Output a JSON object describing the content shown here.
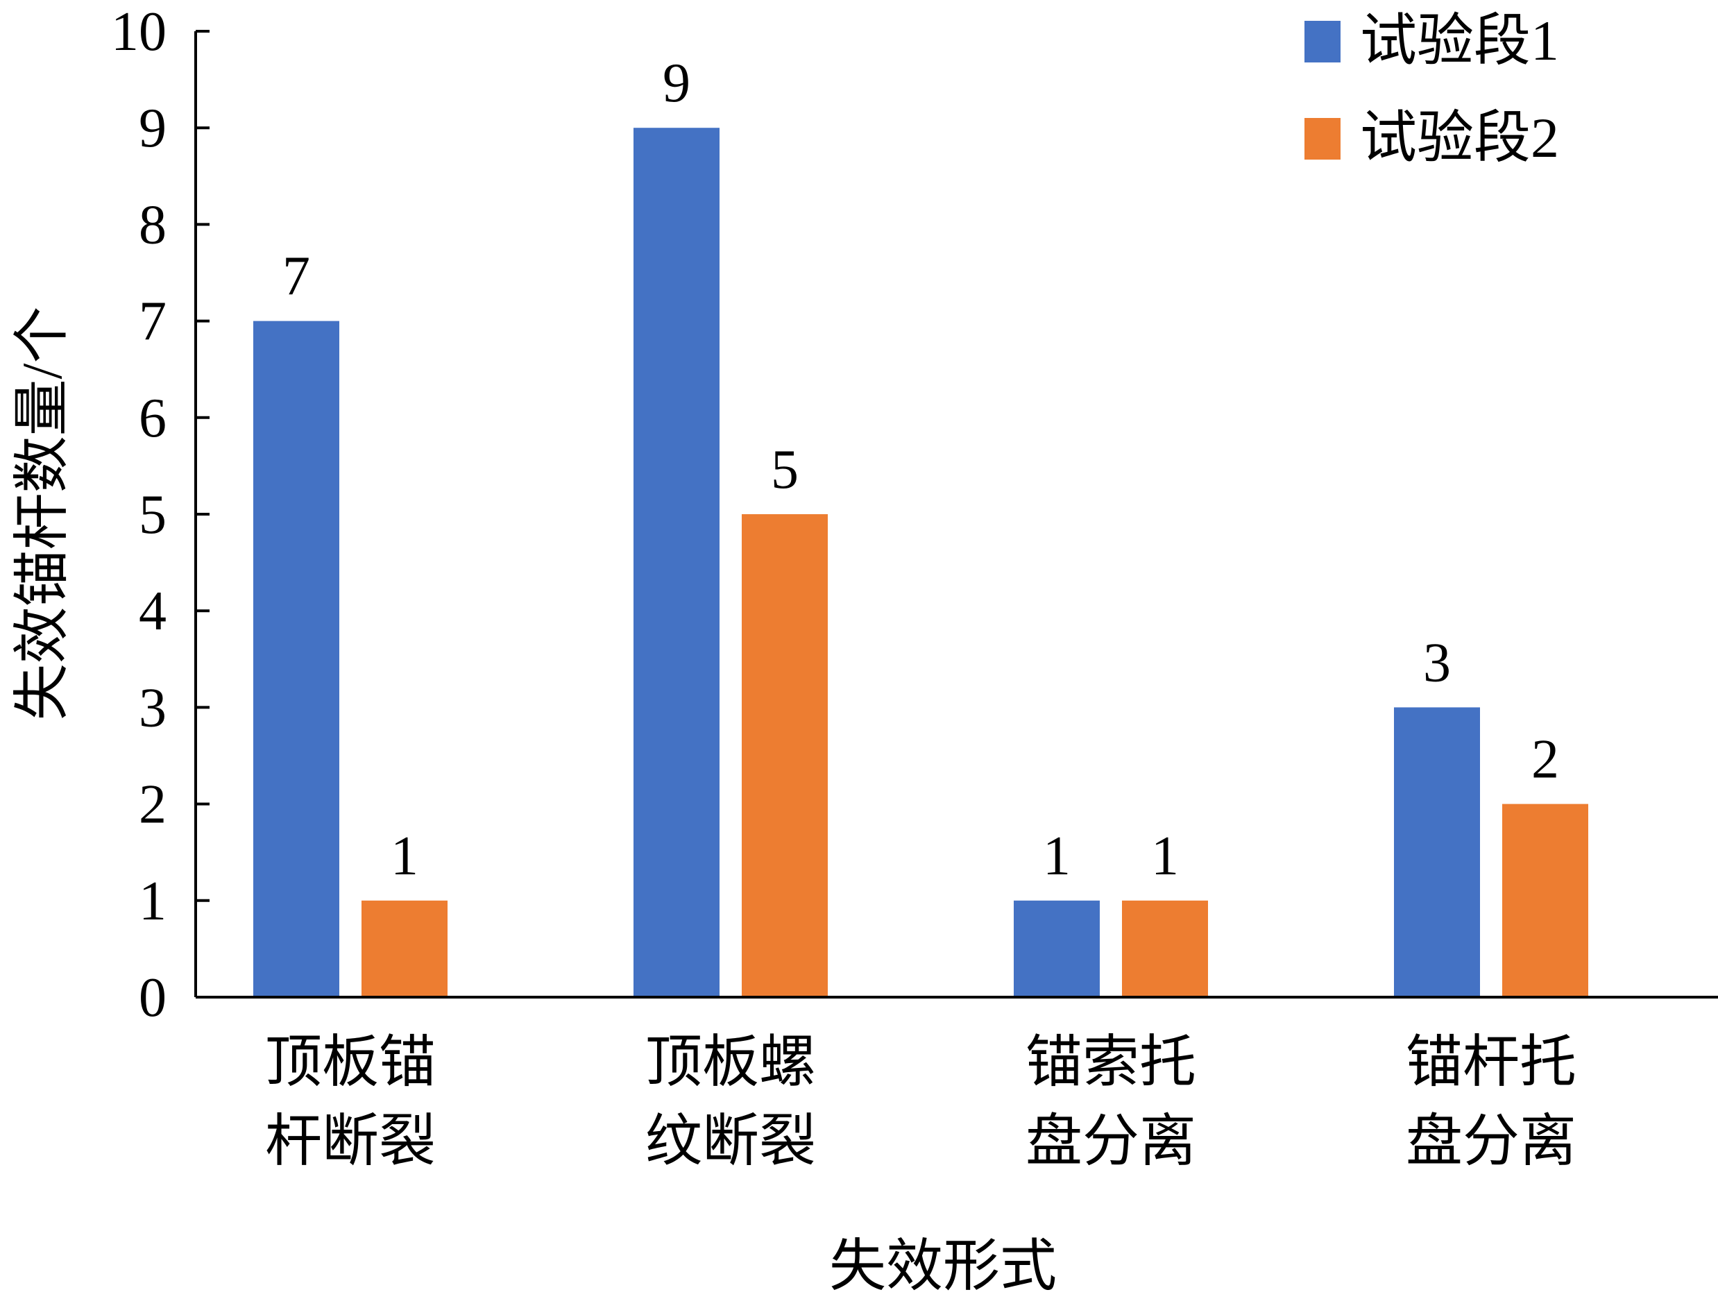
{
  "chart_data": {
    "type": "bar",
    "categories": [
      [
        "顶板锚",
        "杆断裂"
      ],
      [
        "顶板螺",
        "纹断裂"
      ],
      [
        "锚索托",
        "盘分离"
      ],
      [
        "锚杆托",
        "盘分离"
      ]
    ],
    "series": [
      {
        "name": "试验段1",
        "color": "#4472C4",
        "values": [
          7,
          9,
          1,
          3
        ]
      },
      {
        "name": "试验段2",
        "color": "#ED7D31",
        "values": [
          1,
          5,
          1,
          2
        ]
      }
    ],
    "xlabel": "失效形式",
    "ylabel": "失效锚杆数量/个",
    "ylim": [
      0,
      10
    ],
    "yticks": [
      0,
      1,
      2,
      3,
      4,
      5,
      6,
      7,
      8,
      9,
      10
    ],
    "grid": false,
    "legend_position": "top-right",
    "data_labels": true
  }
}
